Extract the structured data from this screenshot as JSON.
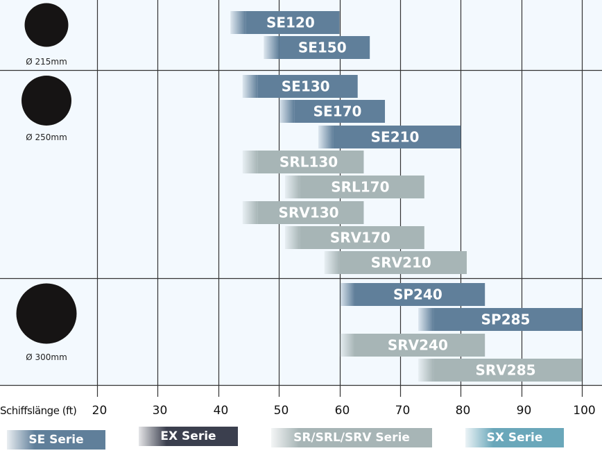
{
  "chart_data": {
    "type": "bar",
    "orientation": "horizontal-range",
    "title": "",
    "xlabel": "Schiffslänge (ft)",
    "ylabel": "",
    "xlim": [
      20,
      100
    ],
    "x_ticks": [
      20,
      30,
      40,
      50,
      60,
      70,
      80,
      90,
      100
    ],
    "grid": true,
    "groups": [
      {
        "diameter_label": "Ø 215mm",
        "bars": [
          {
            "name": "SE120",
            "series": "SE Serie",
            "start": 42,
            "end": 60
          },
          {
            "name": "SE150",
            "series": "SE Serie",
            "start": 47.5,
            "end": 65
          }
        ]
      },
      {
        "diameter_label": "Ø 250mm",
        "bars": [
          {
            "name": "SE130",
            "series": "SE Serie",
            "start": 44,
            "end": 63
          },
          {
            "name": "SE170",
            "series": "SE Serie",
            "start": 50,
            "end": 67.5
          },
          {
            "name": "SE210",
            "series": "SE Serie",
            "start": 56.5,
            "end": 80
          },
          {
            "name": "SRL130",
            "series": "SR/SRL/SRV Serie",
            "start": 44,
            "end": 64
          },
          {
            "name": "SRL170",
            "series": "SR/SRL/SRV Serie",
            "start": 51,
            "end": 74
          },
          {
            "name": "SRV130",
            "series": "SR/SRL/SRV Serie",
            "start": 44,
            "end": 64
          },
          {
            "name": "SRV170",
            "series": "SR/SRL/SRV Serie",
            "start": 51,
            "end": 74
          },
          {
            "name": "SRV210",
            "series": "SR/SRL/SRV Serie",
            "start": 57.5,
            "end": 81
          }
        ]
      },
      {
        "diameter_label": "Ø 300mm",
        "bars": [
          {
            "name": "SP240",
            "series": "SE Serie",
            "start": 60,
            "end": 84
          },
          {
            "name": "SP285",
            "series": "SE Serie",
            "start": 73,
            "end": 100
          },
          {
            "name": "SRV240",
            "series": "SR/SRL/SRV Serie",
            "start": 60,
            "end": 84
          },
          {
            "name": "SRV285",
            "series": "SR/SRL/SRV Serie",
            "start": 73,
            "end": 100
          }
        ]
      }
    ],
    "legend": [
      {
        "label": "SE Serie",
        "color": "#607f9a"
      },
      {
        "label": "EX Serie",
        "color": "#3b3f4e"
      },
      {
        "label": "SR/SRL/SRV Serie",
        "color": "#a7b5b6"
      },
      {
        "label": "SX Serie",
        "color": "#6aa7ba"
      }
    ],
    "legend_position": "bottom"
  },
  "colors": {
    "background": "#f3f9fe",
    "grid": "#333333",
    "marker": "#161414"
  }
}
